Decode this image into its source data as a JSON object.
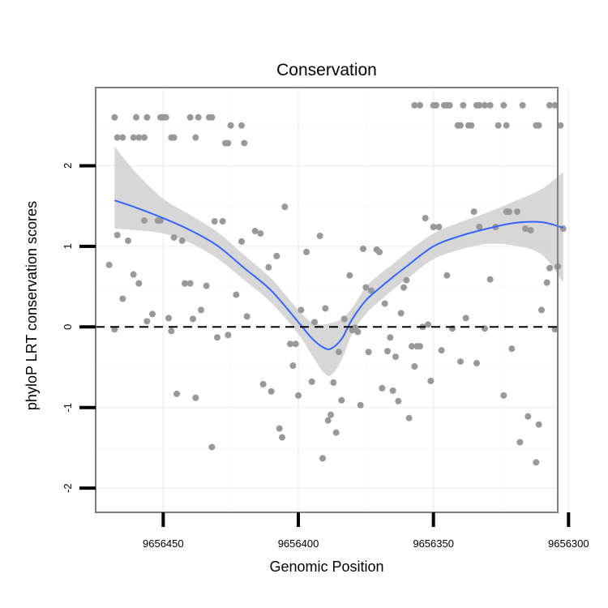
{
  "chart_data": {
    "type": "scatter",
    "title": "Conservation",
    "xlabel": "Genomic Position",
    "ylabel": "phyloP LRT conservation scores",
    "x_reversed": true,
    "xlim": [
      9656475,
      9656304
    ],
    "ylim": [
      -2.3,
      2.97
    ],
    "x_ticks": [
      9656450,
      9656400,
      9656350,
      9656300
    ],
    "x_tick_labels": [
      "9656450",
      "9656400",
      "9656350",
      "9656300"
    ],
    "y_ticks": [
      -2,
      -1,
      0,
      1,
      2
    ],
    "y_tick_labels": [
      "-2",
      "-1",
      "0",
      "1",
      "2"
    ],
    "grid": true,
    "reference_line": {
      "y": 0,
      "style": "dashed",
      "color": "#000000"
    },
    "colors": {
      "points": "#999999",
      "smooth_line": "#3366FF",
      "confidence_band": "#D3D3D3",
      "panel_border": "#7F7F7F",
      "axis_ticks": "#000000"
    },
    "series": [
      {
        "name": "points",
        "type": "scatter",
        "points": [
          [
            9656468,
            2.6
          ],
          [
            9656467,
            2.35
          ],
          [
            9656465,
            2.35
          ],
          [
            9656461,
            2.35
          ],
          [
            9656460,
            2.6
          ],
          [
            9656459,
            2.35
          ],
          [
            9656457,
            2.35
          ],
          [
            9656456,
            2.6
          ],
          [
            9656451,
            2.6
          ],
          [
            9656450,
            2.6
          ],
          [
            9656449,
            2.6
          ],
          [
            9656447,
            2.35
          ],
          [
            9656446,
            2.35
          ],
          [
            9656440,
            2.6
          ],
          [
            9656438,
            2.35
          ],
          [
            9656437,
            2.6
          ],
          [
            9656433,
            2.6
          ],
          [
            9656432,
            2.6
          ],
          [
            9656427,
            2.28
          ],
          [
            9656426,
            2.28
          ],
          [
            9656425,
            2.5
          ],
          [
            9656421,
            2.5
          ],
          [
            9656420,
            2.28
          ],
          [
            9656357,
            2.75
          ],
          [
            9656355,
            2.75
          ],
          [
            9656350,
            2.75
          ],
          [
            9656349,
            2.75
          ],
          [
            9656346,
            2.75
          ],
          [
            9656345,
            2.75
          ],
          [
            9656344,
            2.75
          ],
          [
            9656341,
            2.5
          ],
          [
            9656340,
            2.5
          ],
          [
            9656339,
            2.75
          ],
          [
            9656337,
            2.5
          ],
          [
            9656336,
            2.5
          ],
          [
            9656334,
            2.75
          ],
          [
            9656333,
            2.75
          ],
          [
            9656331,
            2.75
          ],
          [
            9656329,
            2.75
          ],
          [
            9656326,
            2.5
          ],
          [
            9656324,
            2.75
          ],
          [
            9656323,
            2.5
          ],
          [
            9656317,
            2.75
          ],
          [
            9656312,
            2.5
          ],
          [
            9656311,
            2.5
          ],
          [
            9656307,
            2.75
          ],
          [
            9656305,
            2.75
          ],
          [
            9656303,
            2.5
          ],
          [
            9656470,
            0.77
          ],
          [
            9656468,
            -0.03
          ],
          [
            9656467,
            1.14
          ],
          [
            9656465,
            0.35
          ],
          [
            9656463,
            1.07
          ],
          [
            9656461,
            0.65
          ],
          [
            9656459,
            0.54
          ],
          [
            9656457,
            1.32
          ],
          [
            9656456,
            0.07
          ],
          [
            9656454,
            0.16
          ],
          [
            9656452,
            1.32
          ],
          [
            9656451,
            1.32
          ],
          [
            9656448,
            0.11
          ],
          [
            9656447,
            -0.05
          ],
          [
            9656446,
            1.11
          ],
          [
            9656445,
            -0.83
          ],
          [
            9656443,
            1.07
          ],
          [
            9656442,
            0.54
          ],
          [
            9656440,
            0.54
          ],
          [
            9656438,
            -0.88
          ],
          [
            9656439,
            0.1
          ],
          [
            9656436,
            0.21
          ],
          [
            9656434,
            0.51
          ],
          [
            9656432,
            -1.49
          ],
          [
            9656431,
            1.31
          ],
          [
            9656430,
            -0.13
          ],
          [
            9656428,
            1.31
          ],
          [
            9656426,
            -0.1
          ],
          [
            9656423,
            0.4
          ],
          [
            9656421,
            1.06
          ],
          [
            9656419,
            0.13
          ],
          [
            9656416,
            1.19
          ],
          [
            9656414,
            1.16
          ],
          [
            9656413,
            -0.71
          ],
          [
            9656411,
            0.74
          ],
          [
            9656410,
            -0.8
          ],
          [
            9656408,
            0.88
          ],
          [
            9656407,
            -1.26
          ],
          [
            9656406,
            -1.37
          ],
          [
            9656405,
            1.49
          ],
          [
            9656403,
            -0.21
          ],
          [
            9656402,
            -0.48
          ],
          [
            9656401,
            -0.21
          ],
          [
            9656400,
            -0.85
          ],
          [
            9656399,
            0.21
          ],
          [
            9656397,
            0.93
          ],
          [
            9656395,
            -0.68
          ],
          [
            9656394,
            0.06
          ],
          [
            9656392,
            1.13
          ],
          [
            9656391,
            -1.63
          ],
          [
            9656390,
            0.23
          ],
          [
            9656389,
            -1.16
          ],
          [
            9656388,
            -1.09
          ],
          [
            9656387,
            -0.69
          ],
          [
            9656386,
            -1.31
          ],
          [
            9656385,
            -0.31
          ],
          [
            9656384,
            -0.91
          ],
          [
            9656383,
            0.1
          ],
          [
            9656381,
            0.64
          ],
          [
            9656380,
            -0.04
          ],
          [
            9656379,
            -0.01
          ],
          [
            9656378,
            -0.06
          ],
          [
            9656377,
            -0.97
          ],
          [
            9656376,
            0.97
          ],
          [
            9656375,
            0.49
          ],
          [
            9656374,
            -0.31
          ],
          [
            9656373,
            0.45
          ],
          [
            9656371,
            0.96
          ],
          [
            9656370,
            0.93
          ],
          [
            9656369,
            -0.76
          ],
          [
            9656368,
            0.29
          ],
          [
            9656367,
            -0.3
          ],
          [
            9656366,
            -0.13
          ],
          [
            9656365,
            -0.79
          ],
          [
            9656364,
            -0.37
          ],
          [
            9656363,
            -0.92
          ],
          [
            9656362,
            0.17
          ],
          [
            9656361,
            0.49
          ],
          [
            9656360,
            0.58
          ],
          [
            9656359,
            -1.13
          ],
          [
            9656358,
            -0.24
          ],
          [
            9656357,
            -0.49
          ],
          [
            9656356,
            -0.24
          ],
          [
            9656355,
            -0.24
          ],
          [
            9656354,
            0.0
          ],
          [
            9656353,
            1.35
          ],
          [
            9656352,
            0.03
          ],
          [
            9656351,
            -0.67
          ],
          [
            9656350,
            1.24
          ],
          [
            9656348,
            1.24
          ],
          [
            9656347,
            -0.29
          ],
          [
            9656345,
            0.64
          ],
          [
            9656343,
            -0.02
          ],
          [
            9656340,
            -0.43
          ],
          [
            9656338,
            0.11
          ],
          [
            9656335,
            1.43
          ],
          [
            9656334,
            -0.45
          ],
          [
            9656333,
            1.24
          ],
          [
            9656331,
            -0.02
          ],
          [
            9656329,
            0.59
          ],
          [
            9656327,
            1.24
          ],
          [
            9656324,
            -0.85
          ],
          [
            9656323,
            1.43
          ],
          [
            9656322,
            1.43
          ],
          [
            9656321,
            -0.27
          ],
          [
            9656319,
            1.43
          ],
          [
            9656318,
            -1.43
          ],
          [
            9656316,
            1.22
          ],
          [
            9656315,
            -1.11
          ],
          [
            9656314,
            1.2
          ],
          [
            9656312,
            -1.68
          ],
          [
            9656311,
            -1.21
          ],
          [
            9656310,
            0.21
          ],
          [
            9656308,
            0.55
          ],
          [
            9656307,
            0.73
          ],
          [
            9656305,
            -0.03
          ],
          [
            9656304,
            0.75
          ],
          [
            9656302,
            1.22
          ]
        ]
      },
      {
        "name": "loess_smooth",
        "type": "line",
        "x": [
          9656468,
          9656460,
          9656450,
          9656440,
          9656430,
          9656420,
          9656410,
          9656400,
          9656395,
          9656391,
          9656388,
          9656384,
          9656380,
          9656375,
          9656370,
          9656365,
          9656360,
          9656350,
          9656340,
          9656330,
          9656320,
          9656310,
          9656302
        ],
        "y": [
          1.57,
          1.48,
          1.35,
          1.2,
          1.01,
          0.73,
          0.45,
          0.06,
          -0.14,
          -0.25,
          -0.27,
          -0.15,
          0.1,
          0.33,
          0.48,
          0.62,
          0.75,
          1.0,
          1.13,
          1.22,
          1.29,
          1.3,
          1.23
        ],
        "lower": [
          1.22,
          1.2,
          1.16,
          1.04,
          0.85,
          0.58,
          0.3,
          -0.09,
          -0.35,
          -0.55,
          -0.6,
          -0.41,
          -0.08,
          0.16,
          0.32,
          0.46,
          0.59,
          0.84,
          0.96,
          1.03,
          1.01,
          0.9,
          0.55
        ],
        "upper": [
          2.24,
          1.91,
          1.59,
          1.39,
          1.18,
          0.89,
          0.6,
          0.21,
          0.06,
          0.03,
          0.05,
          0.1,
          0.24,
          0.5,
          0.65,
          0.78,
          0.92,
          1.16,
          1.3,
          1.42,
          1.56,
          1.71,
          1.92
        ]
      }
    ]
  }
}
